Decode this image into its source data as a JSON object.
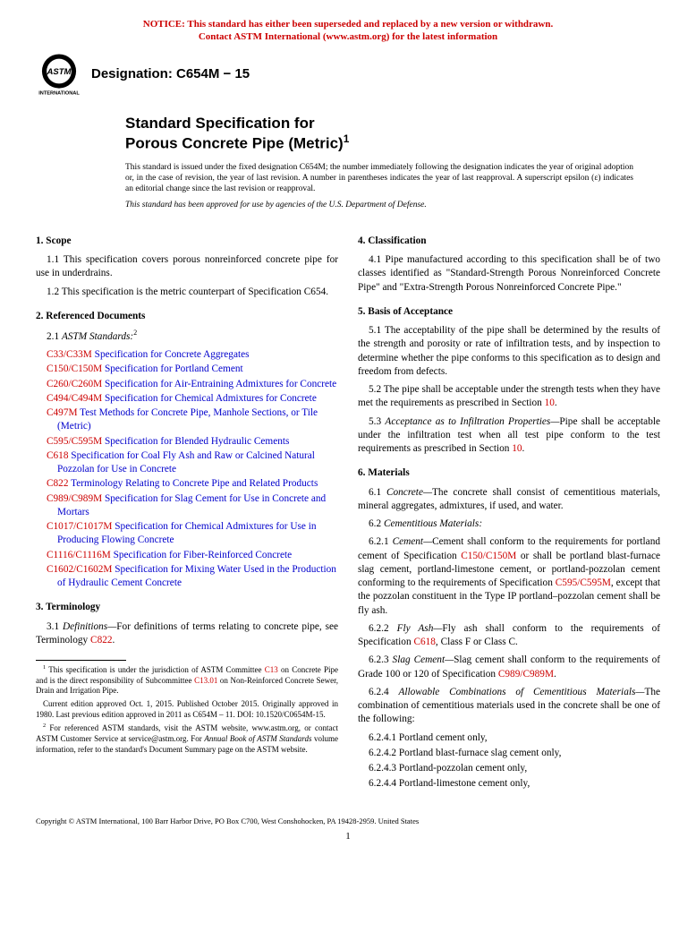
{
  "notice": {
    "line1": "NOTICE: This standard has either been superseded and replaced by a new version or withdrawn.",
    "line2": "Contact ASTM International (www.astm.org) for the latest information"
  },
  "logo_text_top": "ASTM",
  "logo_text_bottom": "INTERNATIONAL",
  "designation": "Designation: C654M − 15",
  "title_line1": "Standard Specification for",
  "title_line2": "Porous Concrete Pipe (Metric)",
  "title_super": "1",
  "issuance": "This standard is issued under the fixed designation C654M; the number immediately following the designation indicates the year of original adoption or, in the case of revision, the year of last revision. A number in parentheses indicates the year of last reapproval. A superscript epsilon (ε) indicates an editorial change since the last revision or reapproval.",
  "dod": "This standard has been approved for use by agencies of the U.S. Department of Defense.",
  "sections": {
    "scope": {
      "head": "1. Scope",
      "p1": "1.1 This specification covers porous nonreinforced concrete pipe for use in underdrains.",
      "p2": "1.2 This specification is the metric counterpart of Specification C654."
    },
    "refs": {
      "head": "2. Referenced Documents",
      "lead": "2.1 ",
      "lead_italic": "ASTM Standards:",
      "lead_sup": "2",
      "items": [
        {
          "code": "C33/C33M",
          "title": " Specification for Concrete Aggregates"
        },
        {
          "code": "C150/C150M",
          "title": " Specification for Portland Cement"
        },
        {
          "code": "C260/C260M",
          "title": " Specification for Air-Entraining Admixtures for Concrete"
        },
        {
          "code": "C494/C494M",
          "title": " Specification for Chemical Admixtures for Concrete"
        },
        {
          "code": "C497M",
          "title": " Test Methods for Concrete Pipe, Manhole Sections, or Tile (Metric)"
        },
        {
          "code": "C595/C595M",
          "title": " Specification for Blended Hydraulic Cements"
        },
        {
          "code": "C618",
          "title": " Specification for Coal Fly Ash and Raw or Calcined Natural Pozzolan for Use in Concrete"
        },
        {
          "code": "C822",
          "title": " Terminology Relating to Concrete Pipe and Related Products"
        },
        {
          "code": "C989/C989M",
          "title": " Specification for Slag Cement for Use in Concrete and Mortars"
        },
        {
          "code": "C1017/C1017M",
          "title": " Specification for Chemical Admixtures for Use in Producing Flowing Concrete"
        },
        {
          "code": "C1116/C1116M",
          "title": " Specification for Fiber-Reinforced Concrete"
        },
        {
          "code": "C1602/C1602M",
          "title": " Specification for Mixing Water Used in the Production of Hydraulic Cement Concrete"
        }
      ]
    },
    "term": {
      "head": "3. Terminology",
      "p1a": "3.1 ",
      "p1b": "Definitions—",
      "p1c": "For definitions of terms relating to concrete pipe, see Terminology ",
      "p1d": "C822",
      "p1e": "."
    },
    "class": {
      "head": "4. Classification",
      "p1": "4.1 Pipe manufactured according to this specification shall be of two classes identified as \"Standard-Strength Porous Nonreinforced Concrete Pipe\" and \"Extra-Strength Porous Nonreinforced Concrete Pipe.\""
    },
    "basis": {
      "head": "5. Basis of Acceptance",
      "p1": "5.1 The acceptability of the pipe shall be determined by the results of the strength and porosity or rate of infiltration tests, and by inspection to determine whether the pipe conforms to this specification as to design and freedom from defects.",
      "p2a": "5.2 The pipe shall be acceptable under the strength tests when they have met the requirements as prescribed in Section ",
      "p2b": "10",
      "p2c": ".",
      "p3a": "5.3 ",
      "p3b": "Acceptance as to Infiltration Properties—",
      "p3c": "Pipe shall be acceptable under the infiltration test when all test pipe conform to the test requirements as prescribed in Section ",
      "p3d": "10",
      "p3e": "."
    },
    "materials": {
      "head": "6. Materials",
      "p61a": "6.1 ",
      "p61b": "Concrete—",
      "p61c": "The concrete shall consist of cementitious materials, mineral aggregates, admixtures, if used, and water.",
      "p62a": "6.2 ",
      "p62b": "Cementitious Materials:",
      "p621a": "6.2.1 ",
      "p621b": "Cement—",
      "p621c": "Cement shall conform to the requirements for portland cement of Specification ",
      "p621d": "C150/C150M",
      "p621e": " or shall be portland blast-furnace slag cement, portland-limestone cement, or portland-pozzolan cement conforming to the requirements of Specification ",
      "p621f": "C595/C595M",
      "p621g": ", except that the pozzolan constituent in the Type IP portland–pozzolan cement shall be fly ash.",
      "p622a": "6.2.2 ",
      "p622b": "Fly Ash—",
      "p622c": "Fly ash shall conform to the requirements of Specification ",
      "p622d": "C618",
      "p622e": ", Class F or Class C.",
      "p623a": "6.2.3 ",
      "p623b": "Slag Cement—",
      "p623c": "Slag cement shall conform to the requirements of Grade 100 or 120 of Specification ",
      "p623d": "C989/C989M",
      "p623e": ".",
      "p624a": "6.2.4 ",
      "p624b": "Allowable Combinations of Cementitious Materials—",
      "p624c": "The combination of cementitious materials used in the concrete shall be one of the following:",
      "c1": "6.2.4.1 Portland cement only,",
      "c2": "6.2.4.2 Portland blast-furnace slag cement only,",
      "c3": "6.2.4.3 Portland-pozzolan cement only,",
      "c4": "6.2.4.4 Portland-limestone cement only,"
    }
  },
  "footnotes": {
    "f1a": "1",
    "f1b": " This specification is under the jurisdiction of ASTM Committee ",
    "f1c": "C13",
    "f1d": " on Concrete Pipe and is the direct responsibility of Subcommittee ",
    "f1e": "C13.01",
    "f1f": " on Non-Reinforced Concrete Sewer, Drain and Irrigation Pipe.",
    "f1g": "Current edition approved Oct. 1, 2015. Published October 2015. Originally approved in 1980. Last previous edition approved in 2011 as C654M – 11. DOI: 10.1520/C0654M-15.",
    "f2a": "2",
    "f2b": " For referenced ASTM standards, visit the ASTM website, www.astm.org, or contact ASTM Customer Service at service@astm.org. For ",
    "f2c": "Annual Book of ASTM Standards",
    "f2d": " volume information, refer to the standard's Document Summary page on the ASTM website."
  },
  "copyright": "Copyright © ASTM International, 100 Barr Harbor Drive, PO Box C700, West Conshohocken, PA 19428-2959. United States",
  "pagenum": "1",
  "colors": {
    "notice": "#cc0000",
    "link_code": "#cc0000",
    "link_title": "#0000cc",
    "text": "#000000",
    "bg": "#ffffff"
  }
}
